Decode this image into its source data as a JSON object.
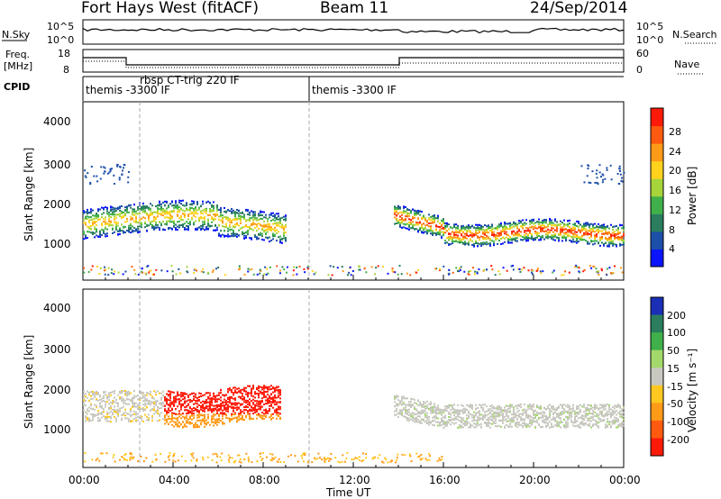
{
  "header": {
    "station": "Fort Hays West (fitACF)",
    "beam": "Beam 11",
    "date": "24/Sep/2014"
  },
  "noise_panel": {
    "left_label": "N.Sky",
    "right_label": "N.Search",
    "ticks": [
      "10^5",
      "10^0"
    ]
  },
  "freq_panel": {
    "left_label_1": "Freq.",
    "left_label_2": "[MHz]",
    "left_ticks": [
      "18",
      "8"
    ],
    "right_label": "Nave",
    "right_ticks": [
      "60",
      "0"
    ]
  },
  "cpid_panel": {
    "label": "CPID",
    "segments": [
      {
        "start_hour": 0.0,
        "end_hour": 2.5,
        "label": "themis -3300 IF"
      },
      {
        "start_hour": 2.5,
        "end_hour": 10.0,
        "label": "rbsp CT-trig 220 IF"
      },
      {
        "start_hour": 10.0,
        "end_hour": 24.0,
        "label": "themis -3300 IF"
      }
    ]
  },
  "time_axis": {
    "label": "Time UT",
    "ticks": [
      "00:00",
      "04:00",
      "08:00",
      "12:00",
      "16:00",
      "20:00",
      "00:00"
    ]
  },
  "power_panel": {
    "ylabel": "Slant Range [km]",
    "yticks": [
      "1000",
      "2000",
      "3000",
      "4000"
    ],
    "colorbar_label": "Power [dB]",
    "colorbar_ticks": [
      "4",
      "8",
      "12",
      "16",
      "20",
      "24",
      "28"
    ],
    "colors": [
      "#0a14ff",
      "#1c4fa8",
      "#2a7e5e",
      "#3fb04a",
      "#a6d43a",
      "#ffd21e",
      "#ff9a18",
      "#ff5a10",
      "#ff1a08"
    ]
  },
  "velocity_panel": {
    "ylabel": "Slant Range [km]",
    "yticks": [
      "1000",
      "2000",
      "3000",
      "4000"
    ],
    "colorbar_label": "Velocity [m s⁻¹]",
    "colorbar_ticks": [
      "200",
      "100",
      "50",
      "15",
      "-15",
      "-50",
      "-100",
      "-200"
    ],
    "colors": [
      "#1a2fb5",
      "#2a7e5e",
      "#3fb04a",
      "#a3d86a",
      "#c8c8c0",
      "#ffc820",
      "#ff9a18",
      "#ff5a10",
      "#ff1a08"
    ]
  },
  "chart_data": {
    "type": "heatmap",
    "x_range_hours": [
      0,
      24
    ],
    "y_range_km": [
      0,
      4600
    ],
    "grid": false,
    "markers_hours": [
      2.5,
      10.0
    ],
    "power_bands": [
      {
        "t0": 0.0,
        "t1": 9.0,
        "range_center_km": [
          1450,
          1700,
          1650,
          1400
        ],
        "width_km": 350,
        "color_index": 5
      },
      {
        "t0": 14.0,
        "t1": 24.0,
        "range_center_km": [
          1700,
          1400,
          1250,
          1200
        ],
        "width_km": 250,
        "color_index": 8
      }
    ],
    "velocity_bands": [
      {
        "t0": 3.5,
        "t1": 8.5,
        "range_center_km": [
          1600,
          1700
        ],
        "width_km": 600,
        "color_index": 7
      }
    ]
  }
}
